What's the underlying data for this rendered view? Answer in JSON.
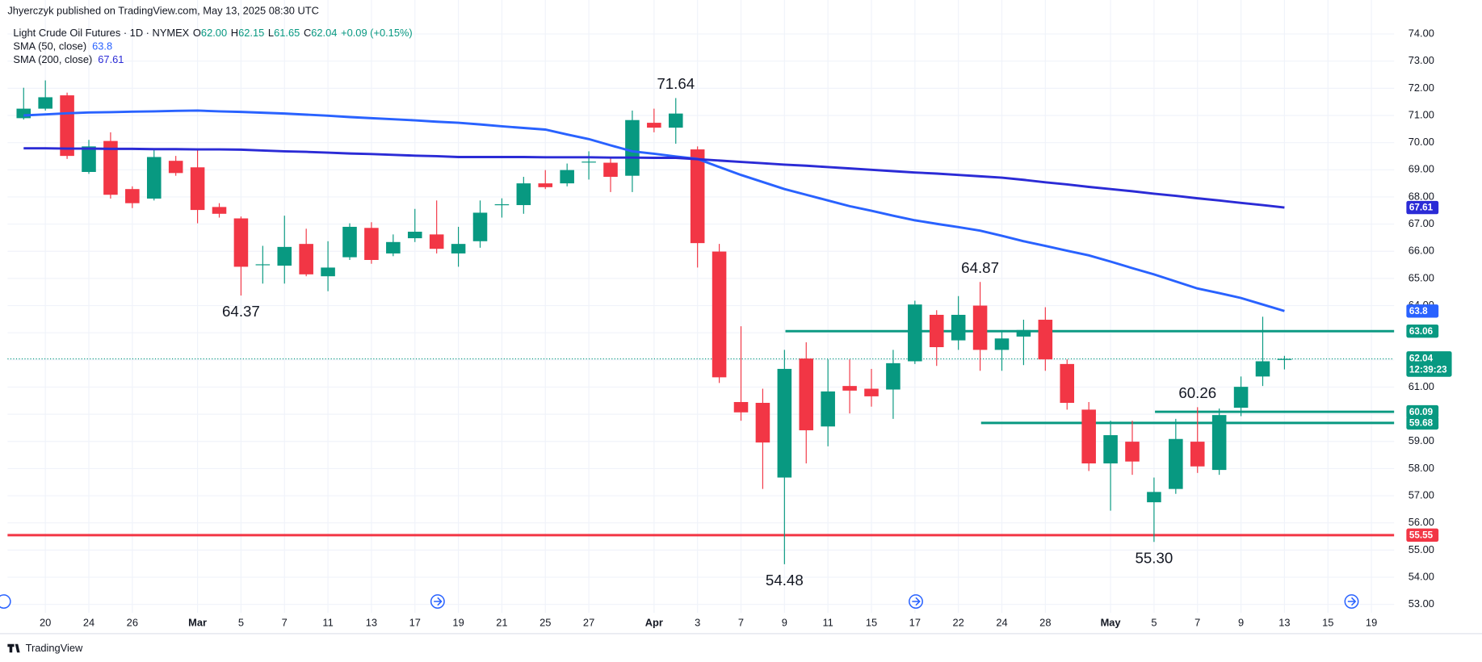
{
  "header": {
    "publisher": "Jhyerczyk published on TradingView.com, May 13, 2025 08:30 UTC",
    "symbol": "Light Crude Oil Futures · 1D · NYMEX",
    "quote": [
      "O",
      "62.00",
      "H",
      "62.15",
      "L",
      "61.65",
      "C",
      "62.04",
      "+0.09 (+0.15%)"
    ]
  },
  "footer": "TradingView",
  "chart_data": {
    "type": "candlestick",
    "categories": [
      null,
      "20",
      null,
      "24",
      null,
      "26",
      null,
      null,
      "Mar",
      null,
      "5",
      null,
      "7",
      null,
      "11",
      null,
      "13",
      null,
      "17",
      null,
      "19",
      null,
      "21",
      null,
      "25",
      null,
      "27",
      null,
      null,
      "Apr",
      null,
      "3",
      null,
      "7",
      null,
      "9",
      null,
      "11",
      null,
      "15",
      null,
      "17",
      null,
      "22",
      null,
      "24",
      null,
      "28",
      null,
      null,
      "May",
      null,
      "5",
      null,
      "7",
      null,
      "9",
      null,
      "13",
      null,
      "15",
      null,
      "19"
    ],
    "open": [
      70.9,
      71.25,
      71.74,
      68.92,
      70.06,
      68.29,
      67.94,
      69.33,
      69.09,
      67.63,
      67.21,
      65.5,
      65.47,
      66.27,
      65.08,
      65.78,
      66.86,
      65.92,
      66.48,
      66.62,
      65.92,
      66.37,
      67.7,
      67.7,
      68.5,
      68.5,
      69.28,
      69.26,
      68.78,
      70.73,
      70.55,
      69.75,
      65.99,
      60.45,
      60.42,
      57.67,
      62.05,
      59.55,
      61.04,
      60.94,
      60.91,
      61.95,
      63.66,
      62.72,
      64.0,
      62.37,
      62.86,
      63.48,
      61.85,
      60.17,
      58.19,
      58.99,
      56.76,
      57.25,
      58.99,
      57.95,
      60.24,
      61.39,
      62.0,
      null,
      null,
      null,
      null
    ],
    "high": [
      72.02,
      72.29,
      71.84,
      70.1,
      70.38,
      68.39,
      69.75,
      69.51,
      69.75,
      67.77,
      67.28,
      66.2,
      67.31,
      66.83,
      66.37,
      67.03,
      67.07,
      66.62,
      67.56,
      67.87,
      66.9,
      67.87,
      67.95,
      68.74,
      68.99,
      69.23,
      69.68,
      69.47,
      71.18,
      71.25,
      71.64,
      69.86,
      66.27,
      63.24,
      60.94,
      62.37,
      62.65,
      62.02,
      62.02,
      61.67,
      62.37,
      64.18,
      63.83,
      64.35,
      64.87,
      63.06,
      63.48,
      63.94,
      62.02,
      60.45,
      59.76,
      59.76,
      57.67,
      59.83,
      60.26,
      60.21,
      61.39,
      63.59,
      62.15,
      null,
      null,
      null,
      null
    ],
    "low": [
      70.85,
      71.18,
      69.4,
      68.85,
      67.94,
      67.59,
      67.87,
      68.78,
      67.03,
      67.24,
      64.37,
      64.81,
      64.81,
      65.08,
      64.53,
      65.68,
      65.54,
      65.82,
      66.34,
      65.92,
      65.43,
      66.13,
      67.24,
      67.38,
      68.29,
      68.39,
      68.64,
      68.18,
      68.18,
      70.38,
      69.96,
      65.4,
      61.15,
      59.76,
      57.25,
      54.48,
      58.19,
      58.82,
      60.03,
      60.28,
      59.83,
      61.85,
      61.78,
      62.37,
      61.6,
      61.6,
      61.81,
      61.6,
      60.17,
      57.91,
      56.45,
      57.77,
      55.3,
      57.07,
      57.84,
      57.77,
      59.93,
      61.04,
      61.65,
      null,
      null,
      null,
      null
    ],
    "close": [
      71.25,
      71.67,
      69.51,
      69.86,
      68.08,
      67.77,
      69.47,
      68.88,
      67.52,
      67.38,
      65.43,
      65.52,
      66.16,
      65.15,
      65.4,
      66.9,
      65.68,
      66.34,
      66.72,
      66.09,
      66.27,
      67.42,
      67.73,
      68.5,
      68.36,
      68.99,
      69.3,
      68.74,
      70.83,
      70.55,
      71.07,
      66.3,
      61.36,
      60.07,
      58.96,
      61.67,
      59.41,
      60.84,
      60.87,
      60.66,
      61.88,
      64.04,
      62.47,
      63.66,
      62.37,
      62.79,
      63.1,
      62.02,
      60.42,
      58.19,
      59.23,
      58.26,
      57.14,
      59.09,
      58.08,
      59.97,
      61.01,
      61.95,
      62.04,
      null,
      null,
      null,
      null
    ],
    "up_color": "#089981",
    "down_color": "#f23645",
    "series": [
      {
        "name": "SMA (50, close)",
        "color": "#2962ff",
        "values": [
          71.0,
          71.04,
          71.08,
          71.11,
          71.12,
          71.14,
          71.15,
          71.17,
          71.18,
          71.15,
          71.13,
          71.1,
          71.07,
          71.03,
          70.99,
          70.94,
          70.9,
          70.86,
          70.82,
          70.77,
          70.73,
          70.67,
          70.6,
          70.54,
          70.48,
          70.3,
          70.13,
          69.9,
          69.68,
          69.59,
          69.49,
          69.4,
          69.1,
          68.81,
          68.55,
          68.29,
          68.08,
          67.87,
          67.66,
          67.49,
          67.31,
          67.14,
          67.01,
          66.89,
          66.76,
          66.57,
          66.37,
          66.2,
          66.02,
          65.85,
          65.62,
          65.38,
          65.15,
          64.89,
          64.63,
          64.46,
          64.28,
          64.04,
          63.8,
          null,
          null,
          null,
          null
        ]
      },
      {
        "name": "SMA (200, close)",
        "color": "#2b2bd6",
        "values": [
          69.79,
          69.79,
          69.78,
          69.78,
          69.77,
          69.77,
          69.76,
          69.76,
          69.75,
          69.75,
          69.74,
          69.71,
          69.68,
          69.66,
          69.63,
          69.6,
          69.58,
          69.55,
          69.52,
          69.5,
          69.47,
          69.47,
          69.47,
          69.47,
          69.46,
          69.46,
          69.46,
          69.45,
          69.45,
          69.44,
          69.44,
          69.39,
          69.34,
          69.29,
          69.24,
          69.19,
          69.15,
          69.1,
          69.05,
          69.0,
          68.95,
          68.9,
          68.86,
          68.81,
          68.76,
          68.71,
          68.63,
          68.54,
          68.46,
          68.37,
          68.29,
          68.21,
          68.12,
          68.04,
          67.95,
          67.87,
          67.78,
          67.7,
          67.61,
          null,
          null,
          null,
          null
        ]
      }
    ],
    "levels": [
      {
        "value": 55.55,
        "color": "#f23645"
      },
      {
        "value": 63.06,
        "color": "#089981"
      },
      {
        "value": 60.09,
        "color": "#089981"
      },
      {
        "value": 59.68,
        "color": "#089981"
      }
    ],
    "annotations": [
      {
        "value": 71.64,
        "label": "71.64"
      },
      {
        "value": 64.37,
        "label": "64.37"
      },
      {
        "value": 54.48,
        "label": "54.48"
      },
      {
        "value": 64.87,
        "label": "64.87"
      },
      {
        "value": 55.3,
        "label": "55.30"
      },
      {
        "value": 60.26,
        "label": "60.26"
      }
    ],
    "countdown": "12:39:23",
    "ylim": [
      52.69,
      75.25
    ],
    "yticks": [
      {
        "value": 53,
        "label": "53.00"
      },
      {
        "value": 54,
        "label": "54.00"
      },
      {
        "value": 55,
        "label": "55.00"
      },
      {
        "value": 56,
        "label": "56.00"
      },
      {
        "value": 57,
        "label": "57.00"
      },
      {
        "value": 58,
        "label": "58.00"
      },
      {
        "value": 59,
        "label": "59.00"
      },
      {
        "value": 60,
        "label": "60.00"
      },
      {
        "value": 61,
        "label": "61.00"
      },
      {
        "value": 62,
        "label": "62.00"
      },
      {
        "value": 63,
        "label": "63.00"
      },
      {
        "value": 64,
        "label": "64.00"
      },
      {
        "value": 65,
        "label": "65.00"
      },
      {
        "value": 66,
        "label": "66.00"
      },
      {
        "value": 67,
        "label": "67.00"
      },
      {
        "value": 68,
        "label": "68.00"
      },
      {
        "value": 69,
        "label": "69.00"
      },
      {
        "value": 70,
        "label": "70.00"
      },
      {
        "value": 71,
        "label": "71.00"
      },
      {
        "value": 72,
        "label": "72.00"
      },
      {
        "value": 73,
        "label": "73.00"
      },
      {
        "value": 74,
        "label": "74.00"
      }
    ],
    "grid": true
  }
}
